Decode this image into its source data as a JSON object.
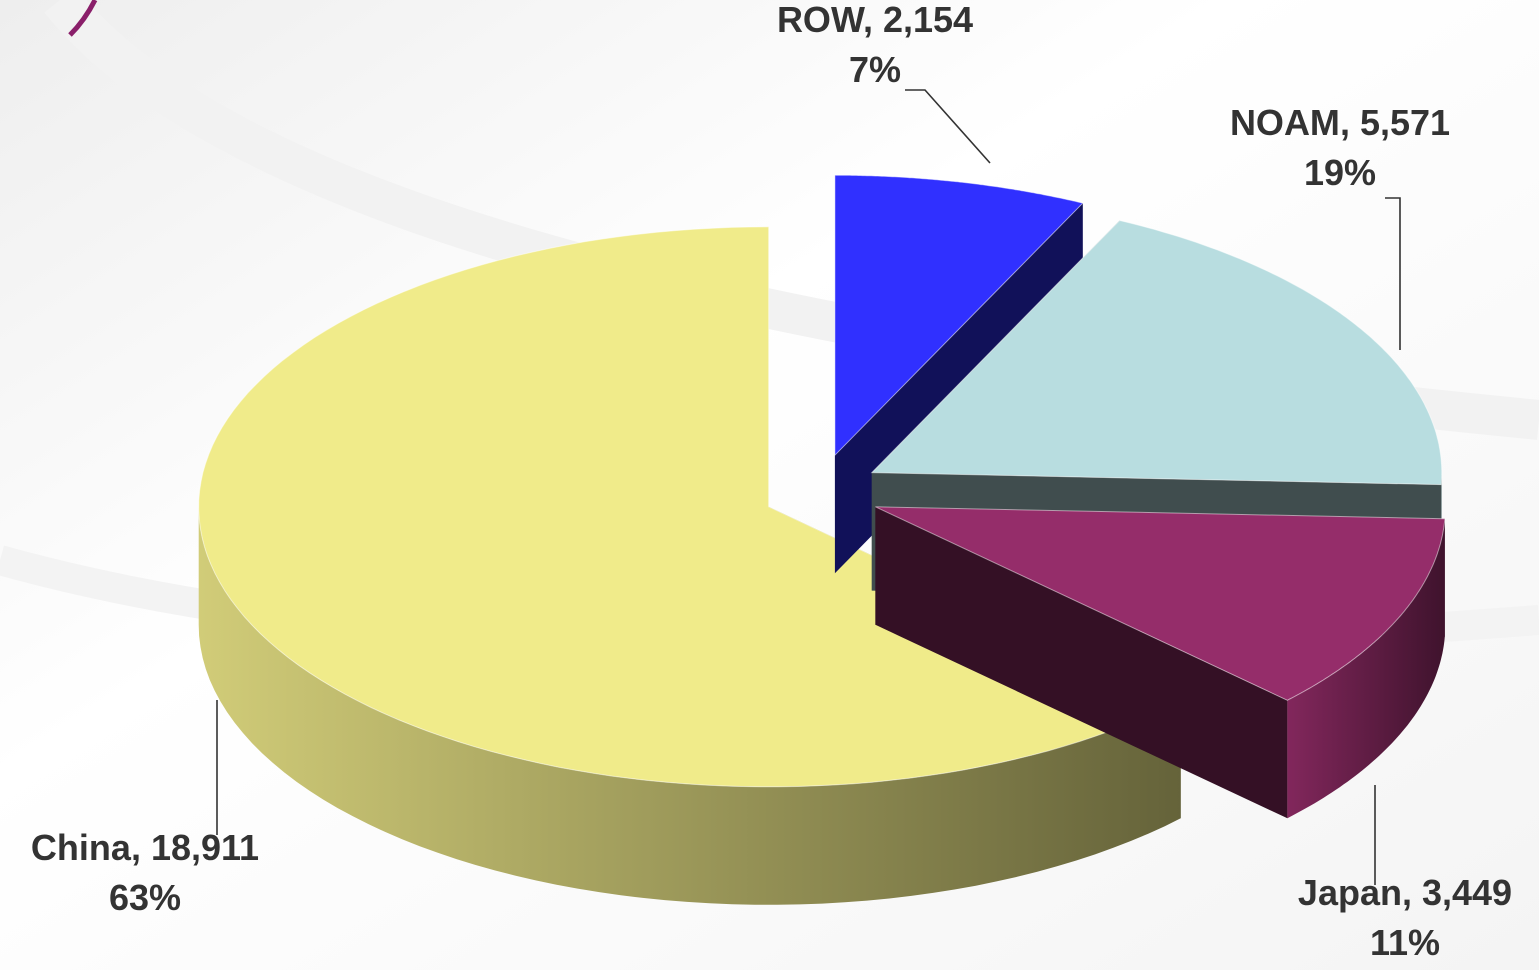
{
  "chart_data": {
    "type": "pie3d",
    "categories": [
      "ROW",
      "NOAM",
      "Japan",
      "China"
    ],
    "values": [
      2154,
      5571,
      3449,
      18911
    ],
    "value_labels": [
      "2,154",
      "5,571",
      "3,449",
      "18,911"
    ],
    "percents": [
      7,
      19,
      11,
      63
    ],
    "percent_labels": [
      "7%",
      "19%",
      "11%",
      "63%"
    ],
    "colors": [
      "#3030ff",
      "#b8dde0",
      "#952d6a",
      "#f0eb8a"
    ]
  }
}
